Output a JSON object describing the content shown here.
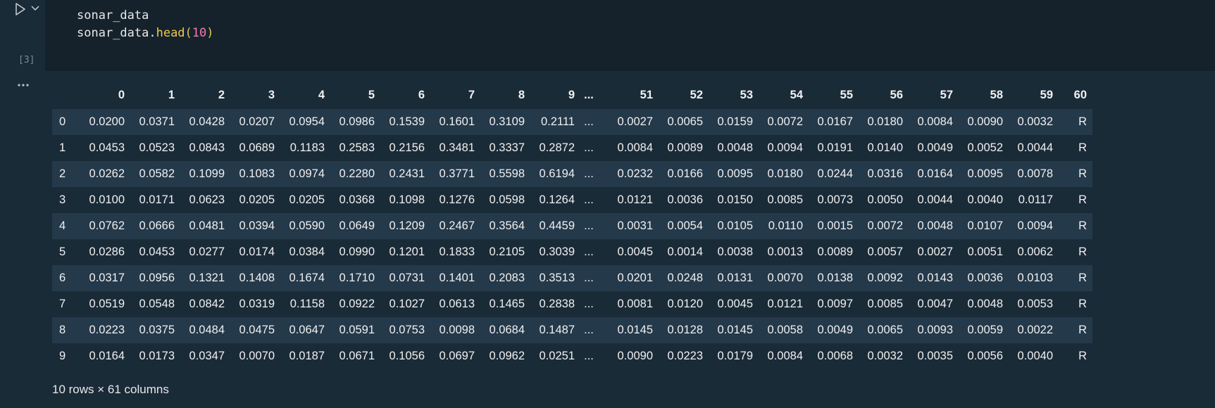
{
  "cell": {
    "execution_count": "[3]",
    "code_lines": [
      {
        "parts": [
          {
            "t": "sonar_data",
            "k": "plain"
          }
        ]
      },
      {
        "parts": [
          {
            "t": "sonar_data.",
            "k": "plain"
          },
          {
            "t": "head",
            "k": "method"
          },
          {
            "t": "(",
            "k": "paren"
          },
          {
            "t": "10",
            "k": "num"
          },
          {
            "t": ")",
            "k": "paren"
          }
        ]
      }
    ]
  },
  "icons": {
    "run": "run-triangle-icon",
    "chevron": "chevron-down-icon",
    "more": "more-horizontal-icon"
  },
  "colors": {
    "background": "#1a2b38",
    "editor_bg": "#15222c",
    "stripe": "#24394a",
    "method": "#f2c94c",
    "number": "#f47ab0"
  },
  "table": {
    "columns": [
      "0",
      "1",
      "2",
      "3",
      "4",
      "5",
      "6",
      "7",
      "8",
      "9",
      "...",
      "51",
      "52",
      "53",
      "54",
      "55",
      "56",
      "57",
      "58",
      "59",
      "60"
    ],
    "rows": [
      {
        "index": "0",
        "cells": [
          "0.0200",
          "0.0371",
          "0.0428",
          "0.0207",
          "0.0954",
          "0.0986",
          "0.1539",
          "0.1601",
          "0.3109",
          "0.2111",
          "...",
          "0.0027",
          "0.0065",
          "0.0159",
          "0.0072",
          "0.0167",
          "0.0180",
          "0.0084",
          "0.0090",
          "0.0032",
          "R"
        ]
      },
      {
        "index": "1",
        "cells": [
          "0.0453",
          "0.0523",
          "0.0843",
          "0.0689",
          "0.1183",
          "0.2583",
          "0.2156",
          "0.3481",
          "0.3337",
          "0.2872",
          "...",
          "0.0084",
          "0.0089",
          "0.0048",
          "0.0094",
          "0.0191",
          "0.0140",
          "0.0049",
          "0.0052",
          "0.0044",
          "R"
        ]
      },
      {
        "index": "2",
        "cells": [
          "0.0262",
          "0.0582",
          "0.1099",
          "0.1083",
          "0.0974",
          "0.2280",
          "0.2431",
          "0.3771",
          "0.5598",
          "0.6194",
          "...",
          "0.0232",
          "0.0166",
          "0.0095",
          "0.0180",
          "0.0244",
          "0.0316",
          "0.0164",
          "0.0095",
          "0.0078",
          "R"
        ]
      },
      {
        "index": "3",
        "cells": [
          "0.0100",
          "0.0171",
          "0.0623",
          "0.0205",
          "0.0205",
          "0.0368",
          "0.1098",
          "0.1276",
          "0.0598",
          "0.1264",
          "...",
          "0.0121",
          "0.0036",
          "0.0150",
          "0.0085",
          "0.0073",
          "0.0050",
          "0.0044",
          "0.0040",
          "0.0117",
          "R"
        ]
      },
      {
        "index": "4",
        "cells": [
          "0.0762",
          "0.0666",
          "0.0481",
          "0.0394",
          "0.0590",
          "0.0649",
          "0.1209",
          "0.2467",
          "0.3564",
          "0.4459",
          "...",
          "0.0031",
          "0.0054",
          "0.0105",
          "0.0110",
          "0.0015",
          "0.0072",
          "0.0048",
          "0.0107",
          "0.0094",
          "R"
        ]
      },
      {
        "index": "5",
        "cells": [
          "0.0286",
          "0.0453",
          "0.0277",
          "0.0174",
          "0.0384",
          "0.0990",
          "0.1201",
          "0.1833",
          "0.2105",
          "0.3039",
          "...",
          "0.0045",
          "0.0014",
          "0.0038",
          "0.0013",
          "0.0089",
          "0.0057",
          "0.0027",
          "0.0051",
          "0.0062",
          "R"
        ]
      },
      {
        "index": "6",
        "cells": [
          "0.0317",
          "0.0956",
          "0.1321",
          "0.1408",
          "0.1674",
          "0.1710",
          "0.0731",
          "0.1401",
          "0.2083",
          "0.3513",
          "...",
          "0.0201",
          "0.0248",
          "0.0131",
          "0.0070",
          "0.0138",
          "0.0092",
          "0.0143",
          "0.0036",
          "0.0103",
          "R"
        ]
      },
      {
        "index": "7",
        "cells": [
          "0.0519",
          "0.0548",
          "0.0842",
          "0.0319",
          "0.1158",
          "0.0922",
          "0.1027",
          "0.0613",
          "0.1465",
          "0.2838",
          "...",
          "0.0081",
          "0.0120",
          "0.0045",
          "0.0121",
          "0.0097",
          "0.0085",
          "0.0047",
          "0.0048",
          "0.0053",
          "R"
        ]
      },
      {
        "index": "8",
        "cells": [
          "0.0223",
          "0.0375",
          "0.0484",
          "0.0475",
          "0.0647",
          "0.0591",
          "0.0753",
          "0.0098",
          "0.0684",
          "0.1487",
          "...",
          "0.0145",
          "0.0128",
          "0.0145",
          "0.0058",
          "0.0049",
          "0.0065",
          "0.0093",
          "0.0059",
          "0.0022",
          "R"
        ]
      },
      {
        "index": "9",
        "cells": [
          "0.0164",
          "0.0173",
          "0.0347",
          "0.0070",
          "0.0187",
          "0.0671",
          "0.1056",
          "0.0697",
          "0.0962",
          "0.0251",
          "...",
          "0.0090",
          "0.0223",
          "0.0179",
          "0.0084",
          "0.0068",
          "0.0032",
          "0.0035",
          "0.0056",
          "0.0040",
          "R"
        ]
      }
    ]
  },
  "summary": "10 rows × 61 columns"
}
